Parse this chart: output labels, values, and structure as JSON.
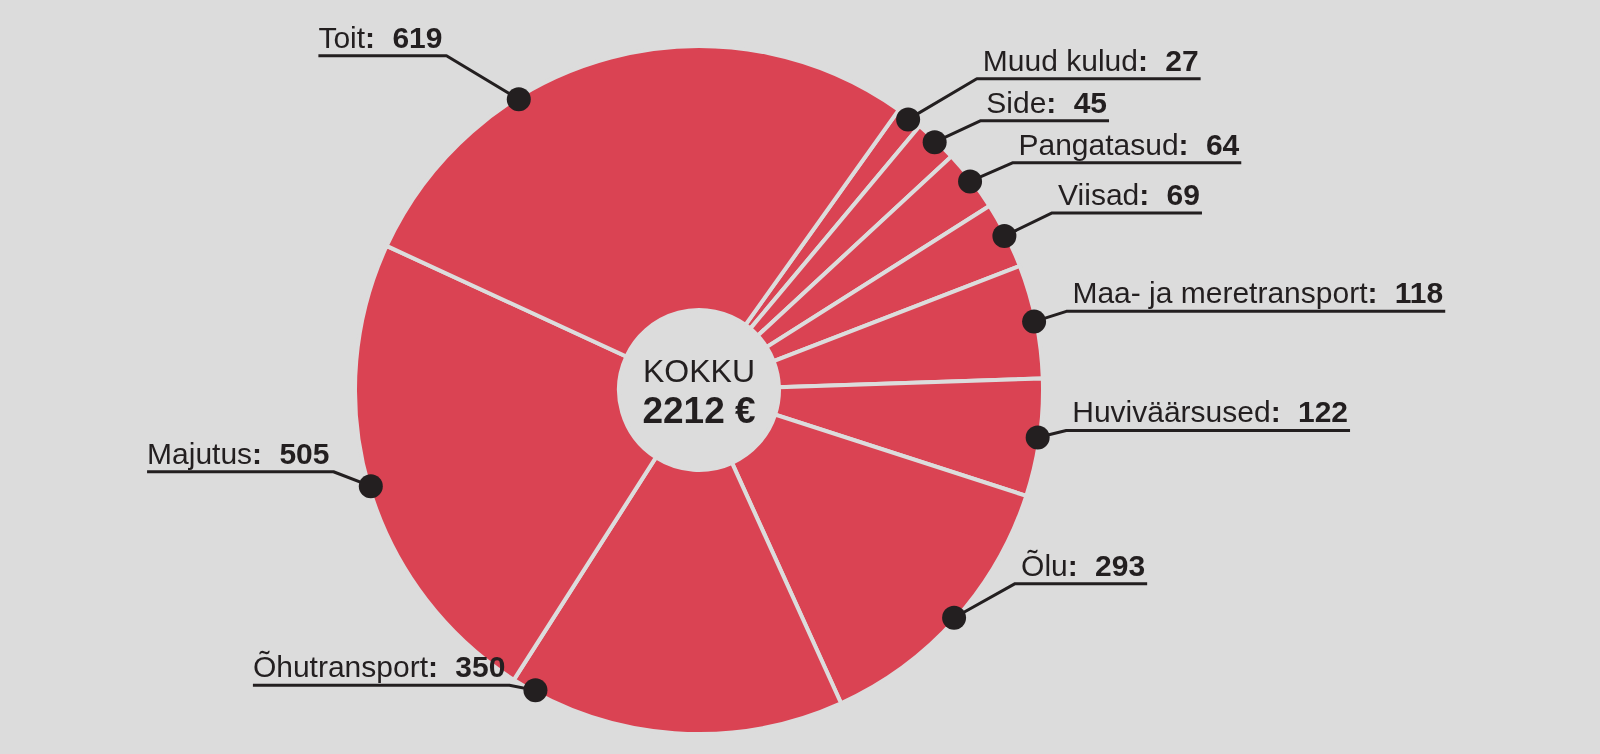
{
  "chart_data": {
    "type": "donut",
    "categories": [
      "Muud kulud",
      "Side",
      "Pangatasud",
      "Viisad",
      "Maa- ja meretransport",
      "Huviväärsused",
      "Õlu",
      "Õhutransport",
      "Majutus",
      "Toit"
    ],
    "values": [
      27,
      45,
      64,
      69,
      118,
      122,
      293,
      350,
      505,
      619
    ],
    "value_labels": [
      ": 27",
      ": 45",
      ": 64",
      ": 69",
      ": 118",
      ": 122",
      ": 293",
      ": 350",
      ": 505",
      ": 619"
    ],
    "colors": [
      "#da4353",
      "#da4353",
      "#da4353",
      "#da4353",
      "#da4353",
      "#da4353",
      "#da4353",
      "#da4353",
      "#da4353",
      "#da4353"
    ],
    "annotations": [
      "KOKKU",
      "2212 €"
    ]
  }
}
